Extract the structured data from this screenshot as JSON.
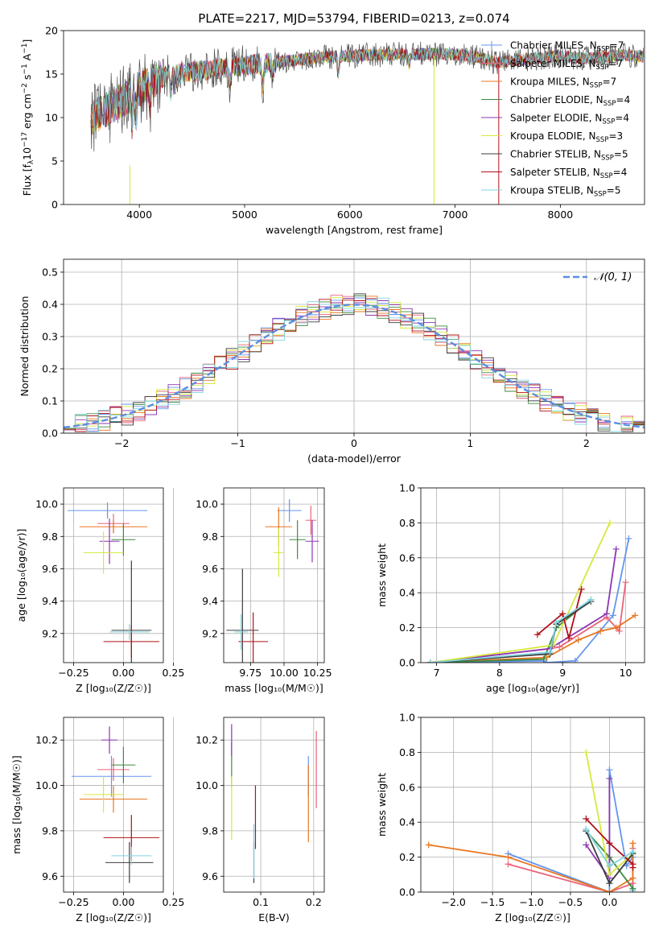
{
  "chart_data": [
    {
      "id": "spectrum",
      "type": "line",
      "title": "PLATE=2217, MJD=53794, FIBERID=0213, z=0.074",
      "xlabel": "wavelength [Angstrom, rest frame]",
      "ylabel_parts": [
        "Flux [f",
        "λ",
        "10",
        "−17",
        " erg cm",
        "−2",
        " s",
        "−1",
        " A",
        "−1",
        "]"
      ],
      "xlim": [
        3280,
        8800
      ],
      "ylim": [
        0,
        20
      ],
      "xticks": [
        4000,
        5000,
        6000,
        7000,
        8000
      ],
      "yticks": [
        0,
        5,
        10,
        15,
        20
      ],
      "grid": false,
      "legend_position": "right",
      "continuum_wavelength": [
        3550,
        3700,
        3900,
        4100,
        4300,
        4600,
        5000,
        5400,
        5800,
        6200,
        6600,
        7000,
        7200,
        7400,
        7600,
        7800,
        8000,
        8200,
        8400,
        8600,
        8790
      ],
      "continuum_flux": [
        10.0,
        11.0,
        12.5,
        14.0,
        15.0,
        15.4,
        16.0,
        16.5,
        17.0,
        17.2,
        17.3,
        17.3,
        17.0,
        16.3,
        16.6,
        16.9,
        17.1,
        16.8,
        16.9,
        17.2,
        17.0
      ],
      "series": [
        {
          "name": "Chabrier MILES",
          "nssp": "7",
          "color": "#6495ed",
          "marker": "plus"
        },
        {
          "name": "Salpeter MILES",
          "nssp": "7",
          "color": "#e9637a",
          "marker": "plus"
        },
        {
          "name": "Kroupa MILES",
          "nssp": "7",
          "color": "#e87722",
          "marker": "none"
        },
        {
          "name": "Chabrier ELODIE",
          "nssp": "4",
          "color": "#3f8a3f",
          "marker": "none"
        },
        {
          "name": "Salpeter ELODIE",
          "nssp": "4",
          "color": "#8e35b2",
          "marker": "none"
        },
        {
          "name": "Kroupa ELODIE",
          "nssp": "3",
          "color": "#d6e83c",
          "marker": "none"
        },
        {
          "name": "Chabrier STELIB",
          "nssp": "5",
          "color": "#3d3d3d",
          "marker": "none"
        },
        {
          "name": "Salpeter STELIB",
          "nssp": "4",
          "color": "#b21018",
          "marker": "none"
        },
        {
          "name": "Kroupa STELIB",
          "nssp": "5",
          "color": "#7fd4e0",
          "marker": "none"
        }
      ]
    },
    {
      "id": "residuals",
      "type": "histogram",
      "xlabel": "(data-model)/error",
      "ylabel": "Normed distribution",
      "xlim": [
        -2.5,
        2.5
      ],
      "ylim": [
        0,
        0.54
      ],
      "xticks": [
        -2,
        -1,
        0,
        1,
        2
      ],
      "xtick_labels": [
        "−2",
        "−1",
        "0",
        "1",
        "2"
      ],
      "yticks": [
        0.0,
        0.1,
        0.2,
        0.3,
        0.4,
        0.5
      ],
      "ytick_labels": [
        "0.0",
        "0.1",
        "0.2",
        "0.3",
        "0.4",
        "0.5"
      ],
      "grid": true,
      "legend_position": "top-right",
      "legend_label": "𝒩(0, 1)",
      "reference_curve_color": "#5b8ee0"
    },
    {
      "id": "age_vs_Z",
      "type": "errorbar",
      "xlabel": "Z [log₁₀(Z/Z☉)]",
      "ylabel": "age  [log₁₀(age/yr)]",
      "xlim": [
        -0.3,
        0.2
      ],
      "ylim": [
        9.02,
        10.1
      ],
      "xticks": [
        -0.25,
        0.0,
        0.25
      ],
      "xtick_labels": [
        "−0.25",
        "0.00",
        "0.25"
      ],
      "yticks": [
        9.2,
        9.4,
        9.6,
        9.8,
        10.0
      ],
      "ytick_labels": [
        "9.2",
        "9.4",
        "9.6",
        "9.8",
        "10.0"
      ],
      "grid": true,
      "points": [
        {
          "series": "Chabrier MILES",
          "x": -0.08,
          "xerr": 0.2,
          "y": 9.96,
          "yerr": 0.05
        },
        {
          "series": "Salpeter MILES",
          "x": -0.05,
          "xerr": 0.08,
          "y": 9.88,
          "yerr": 0.06
        },
        {
          "series": "Kroupa MILES",
          "x": -0.05,
          "xerr": 0.17,
          "y": 9.86,
          "yerr": 0.04
        },
        {
          "series": "Chabrier ELODIE",
          "x": 0.0,
          "xerr": 0.06,
          "y": 9.78,
          "yerr": 0.1
        },
        {
          "series": "Salpeter ELODIE",
          "x": -0.07,
          "xerr": 0.05,
          "y": 9.77,
          "yerr": 0.14
        },
        {
          "series": "Kroupa ELODIE",
          "x": -0.1,
          "xerr": 0.1,
          "y": 9.7,
          "yerr": 0.13
        },
        {
          "series": "Chabrier STELIB",
          "x": 0.04,
          "xerr": 0.1,
          "y": 9.22,
          "yerr": 0.43
        },
        {
          "series": "Salpeter STELIB",
          "x": 0.04,
          "xerr": 0.14,
          "y": 9.15,
          "yerr": 0.1
        },
        {
          "series": "Kroupa STELIB",
          "x": 0.03,
          "xerr": 0.1,
          "y": 9.21,
          "yerr": 0.05
        }
      ]
    },
    {
      "id": "age_vs_mass",
      "type": "errorbar",
      "xlabel": "mass [log₁₀(M/M☉)]",
      "ylabel": "",
      "xlim": [
        9.55,
        10.3
      ],
      "ylim": [
        9.02,
        10.1
      ],
      "xticks": [
        9.75,
        10.0,
        10.25
      ],
      "xtick_labels": [
        "9.75",
        "10.00",
        "10.25"
      ],
      "yticks": [
        9.2,
        9.4,
        9.6,
        9.8,
        10.0
      ],
      "ytick_labels": [
        "9.2",
        "9.4",
        "9.6",
        "9.8",
        "10.0"
      ],
      "grid": true,
      "points": [
        {
          "series": "Chabrier MILES",
          "x": 10.04,
          "xerr": 0.09,
          "y": 9.96,
          "yerr": 0.07
        },
        {
          "series": "Salpeter MILES",
          "x": 10.2,
          "xerr": 0.04,
          "y": 9.9,
          "yerr": 0.09
        },
        {
          "series": "Kroupa MILES",
          "x": 9.96,
          "xerr": 0.1,
          "y": 9.86,
          "yerr": 0.12
        },
        {
          "series": "Chabrier ELODIE",
          "x": 10.1,
          "xerr": 0.06,
          "y": 9.78,
          "yerr": 0.12
        },
        {
          "series": "Salpeter ELODIE",
          "x": 10.21,
          "xerr": 0.05,
          "y": 9.77,
          "yerr": 0.13
        },
        {
          "series": "Kroupa ELODIE",
          "x": 9.96,
          "xerr": 0.04,
          "y": 9.7,
          "yerr": 0.15
        },
        {
          "series": "Chabrier STELIB",
          "x": 9.69,
          "xerr": 0.12,
          "y": 9.22,
          "yerr": 0.38
        },
        {
          "series": "Salpeter STELIB",
          "x": 9.77,
          "xerr": 0.11,
          "y": 9.15,
          "yerr": 0.18
        },
        {
          "series": "Kroupa STELIB",
          "x": 9.68,
          "xerr": 0.05,
          "y": 9.21,
          "yerr": 0.11
        }
      ]
    },
    {
      "id": "weight_vs_age",
      "type": "line",
      "xlabel": "age  [log₁₀(age/yr)]",
      "ylabel": "mass weight",
      "xlim": [
        6.75,
        10.3
      ],
      "ylim": [
        0,
        1.0
      ],
      "xticks": [
        7,
        8,
        9,
        10
      ],
      "xtick_labels": [
        "7",
        "8",
        "9",
        "10"
      ],
      "yticks": [
        0.0,
        0.2,
        0.4,
        0.6,
        0.8,
        1.0
      ],
      "ytick_labels": [
        "0.0",
        "0.2",
        "0.4",
        "0.6",
        "0.8",
        "1.0"
      ],
      "grid": true,
      "series": [
        {
          "name": "Chabrier MILES",
          "x": [
            6.9,
            8.7,
            8.75,
            9.2,
            9.8,
            10.05
          ],
          "y": [
            0.0,
            0.01,
            0.0,
            0.01,
            0.27,
            0.71
          ]
        },
        {
          "name": "Salpeter MILES",
          "x": [
            6.9,
            8.8,
            8.95,
            9.7,
            9.9,
            10.0
          ],
          "y": [
            0.0,
            0.08,
            0.09,
            0.26,
            0.18,
            0.46
          ]
        },
        {
          "name": "Kroupa MILES",
          "x": [
            6.9,
            8.75,
            9.25,
            9.6,
            9.85,
            10.15
          ],
          "y": [
            0.0,
            0.03,
            0.13,
            0.18,
            0.2,
            0.27
          ]
        },
        {
          "name": "Chabrier ELODIE",
          "x": [
            6.9,
            8.7,
            8.9,
            9.45
          ],
          "y": [
            0.0,
            0.02,
            0.2,
            0.36
          ]
        },
        {
          "name": "Salpeter ELODIE",
          "x": [
            6.9,
            8.8,
            9.7,
            9.85
          ],
          "y": [
            0.0,
            0.08,
            0.28,
            0.65
          ]
        },
        {
          "name": "Kroupa ELODIE",
          "x": [
            6.9,
            8.85,
            9.75
          ],
          "y": [
            0.0,
            0.1,
            0.8
          ]
        },
        {
          "name": "Chabrier STELIB",
          "x": [
            6.9,
            8.8,
            8.9,
            9.45
          ],
          "y": [
            0.0,
            0.05,
            0.22,
            0.35
          ]
        },
        {
          "name": "Salpeter STELIB",
          "x": [
            8.6,
            9.0,
            9.1,
            9.3
          ],
          "y": [
            0.16,
            0.28,
            0.14,
            0.42
          ]
        },
        {
          "name": "Kroupa STELIB",
          "x": [
            6.9,
            8.8,
            8.9,
            9.45
          ],
          "y": [
            0.0,
            0.06,
            0.23,
            0.36
          ]
        }
      ]
    },
    {
      "id": "mass_vs_Z",
      "type": "errorbar",
      "xlabel": "Z [log₁₀(Z/Z☉)]",
      "ylabel": "mass [log₁₀(M/M☉)]",
      "xlim": [
        -0.3,
        0.2
      ],
      "ylim": [
        9.53,
        10.3
      ],
      "xticks": [
        -0.25,
        0.0,
        0.25
      ],
      "xtick_labels": [
        "−0.25",
        "0.00",
        "0.25"
      ],
      "yticks": [
        9.6,
        9.8,
        10.0,
        10.2
      ],
      "ytick_labels": [
        "9.6",
        "9.8",
        "10.0",
        "10.2"
      ],
      "grid": true,
      "points": [
        {
          "series": "Chabrier MILES",
          "x": -0.06,
          "xerr": 0.2,
          "y": 10.04,
          "yerr": 0.09
        },
        {
          "series": "Salpeter MILES",
          "x": -0.05,
          "xerr": 0.08,
          "y": 10.07,
          "yerr": 0.05
        },
        {
          "series": "Kroupa MILES",
          "x": -0.05,
          "xerr": 0.17,
          "y": 9.94,
          "yerr": 0.06
        },
        {
          "series": "Chabrier ELODIE",
          "x": 0.0,
          "xerr": 0.06,
          "y": 10.09,
          "yerr": 0.08
        },
        {
          "series": "Salpeter ELODIE",
          "x": -0.07,
          "xerr": 0.04,
          "y": 10.2,
          "yerr": 0.06
        },
        {
          "series": "Kroupa ELODIE",
          "x": -0.1,
          "xerr": 0.1,
          "y": 9.96,
          "yerr": 0.08
        },
        {
          "series": "Chabrier STELIB",
          "x": 0.03,
          "xerr": 0.12,
          "y": 9.66,
          "yerr": 0.09
        },
        {
          "series": "Salpeter STELIB",
          "x": 0.04,
          "xerr": 0.14,
          "y": 9.77,
          "yerr": 0.1
        },
        {
          "series": "Kroupa STELIB",
          "x": 0.04,
          "xerr": 0.1,
          "y": 9.69,
          "yerr": 0.04
        }
      ]
    },
    {
      "id": "mass_vs_ebv",
      "type": "errorbar",
      "xlabel": "E(B-V)",
      "ylabel": "",
      "xlim": [
        0.03,
        0.22
      ],
      "ylim": [
        9.53,
        10.3
      ],
      "xticks": [
        0.1,
        0.2
      ],
      "xtick_labels": [
        "0.1",
        "0.2"
      ],
      "yticks": [
        9.6,
        9.8,
        10.0,
        10.2
      ],
      "ytick_labels": [
        "9.6",
        "9.8",
        "10.0",
        "10.2"
      ],
      "grid": true,
      "points": [
        {
          "series": "Chabrier MILES",
          "x": 0.19,
          "xerr": 0,
          "y": 10.04,
          "yerr": 0.09
        },
        {
          "series": "Salpeter MILES",
          "x": 0.205,
          "xerr": 0,
          "y": 10.07,
          "yerr": 0.17
        },
        {
          "series": "Kroupa MILES",
          "x": 0.19,
          "xerr": 0,
          "y": 9.92,
          "yerr": 0.17
        },
        {
          "series": "Chabrier ELODIE",
          "x": 0.045,
          "xerr": 0,
          "y": 10.09,
          "yerr": 0.1
        },
        {
          "series": "Salpeter ELODIE",
          "x": 0.045,
          "xerr": 0,
          "y": 10.2,
          "yerr": 0.07
        },
        {
          "series": "Kroupa ELODIE",
          "x": 0.045,
          "xerr": 0,
          "y": 9.9,
          "yerr": 0.14
        },
        {
          "series": "Chabrier STELIB",
          "x": 0.087,
          "xerr": 0,
          "y": 9.66,
          "yerr": 0.09
        },
        {
          "series": "Salpeter STELIB",
          "x": 0.09,
          "xerr": 0,
          "y": 9.86,
          "yerr": 0.14
        },
        {
          "series": "Kroupa STELIB",
          "x": 0.087,
          "xerr": 0,
          "y": 9.71,
          "yerr": 0.12
        }
      ]
    },
    {
      "id": "weight_vs_Z",
      "type": "line",
      "xlabel": "Z [log₁₀(Z/Z☉)]",
      "ylabel": "mass weight",
      "xlim": [
        -2.42,
        0.45
      ],
      "ylim": [
        0,
        1.0
      ],
      "xticks": [
        -2.0,
        -1.5,
        -1.0,
        -0.5,
        0.0
      ],
      "xtick_labels": [
        "−2.0",
        "−1.5",
        "−1.0",
        "−0.5",
        "0.0"
      ],
      "yticks": [
        0.0,
        0.2,
        0.4,
        0.6,
        0.8,
        1.0
      ],
      "ytick_labels": [
        "0.0",
        "0.2",
        "0.4",
        "0.6",
        "0.8",
        "1.0"
      ],
      "grid": true,
      "series": [
        {
          "name": "Chabrier MILES",
          "x": [
            -1.3,
            0.0,
            0.0,
            0.22,
            0.3,
            0.3
          ],
          "y": [
            0.22,
            0.0,
            0.7,
            0.15,
            0.2,
            0.01
          ]
        },
        {
          "name": "Salpeter MILES",
          "x": [
            -1.3,
            0.0,
            0.3,
            0.3
          ],
          "y": [
            0.16,
            0.0,
            0.05,
            0.25
          ]
        },
        {
          "name": "Kroupa MILES",
          "x": [
            -2.32,
            -1.3,
            0.0,
            0.3,
            0.3
          ],
          "y": [
            0.27,
            0.2,
            0.0,
            0.08,
            0.28
          ]
        },
        {
          "name": "Chabrier ELODIE",
          "x": [
            -0.3,
            0.0,
            0.3
          ],
          "y": [
            0.35,
            0.2,
            0.02
          ]
        },
        {
          "name": "Salpeter ELODIE",
          "x": [
            -0.3,
            0.0,
            0.0,
            0.0
          ],
          "y": [
            0.27,
            0.08,
            0.28,
            0.65
          ]
        },
        {
          "name": "Kroupa ELODIE",
          "x": [
            -0.3,
            0.0,
            0.3
          ],
          "y": [
            0.8,
            0.1,
            0.22
          ]
        },
        {
          "name": "Chabrier STELIB",
          "x": [
            -0.3,
            0.0,
            0.3
          ],
          "y": [
            0.35,
            0.05,
            0.22
          ]
        },
        {
          "name": "Salpeter STELIB",
          "x": [
            -0.3,
            0.0,
            0.3,
            0.3
          ],
          "y": [
            0.42,
            0.28,
            0.16,
            0.14
          ]
        },
        {
          "name": "Kroupa STELIB",
          "x": [
            -0.3,
            0.0,
            0.3
          ],
          "y": [
            0.36,
            0.15,
            0.23
          ]
        }
      ]
    }
  ]
}
